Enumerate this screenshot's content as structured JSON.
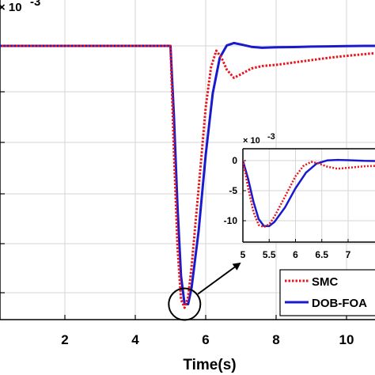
{
  "chart_data": [
    {
      "type": "line",
      "role": "main",
      "xlabel": "Time(s)",
      "ylabel": "",
      "multiplier_label": "× 10",
      "multiplier_exponent": "-3",
      "xlim": [
        -0.2,
        11.2
      ],
      "ylim": [
        -12.5,
        1.1
      ],
      "x_ticks": [
        2,
        4,
        6,
        8,
        10
      ],
      "x_tick_labels": [
        "2",
        "4",
        "6",
        "8",
        "10"
      ],
      "grid": true,
      "legend_position": "bottom-right",
      "legend": [
        "SMC",
        "DOB-FOA"
      ],
      "series": [
        {
          "name": "SMC",
          "style": "dotted",
          "color": "#e8141c",
          "x": [
            0,
            5.0,
            5.1,
            5.2,
            5.3,
            5.4,
            5.5,
            5.6,
            5.8,
            6.0,
            6.15,
            6.3,
            6.45,
            6.6,
            6.8,
            7.0,
            7.3,
            7.6,
            8.0,
            8.5,
            9.0,
            9.5,
            10.0,
            10.5,
            11.2
          ],
          "y": [
            0,
            0,
            -4.5,
            -8.5,
            -10.7,
            -11.05,
            -10.6,
            -9.3,
            -6.0,
            -2.6,
            -0.9,
            -0.2,
            -0.5,
            -1.0,
            -1.35,
            -1.2,
            -0.95,
            -0.85,
            -0.8,
            -0.7,
            -0.6,
            -0.5,
            -0.42,
            -0.35,
            -0.25
          ]
        },
        {
          "name": "DOB-FOA",
          "style": "solid",
          "color": "#1a1acc",
          "x": [
            0,
            5.0,
            5.1,
            5.2,
            5.3,
            5.4,
            5.5,
            5.6,
            5.8,
            6.0,
            6.2,
            6.4,
            6.6,
            6.8,
            7.0,
            7.3,
            7.6,
            8.0,
            8.5,
            9.0,
            9.5,
            10.0,
            10.5,
            11.2
          ],
          "y": [
            0,
            0,
            -3.0,
            -6.8,
            -9.7,
            -10.9,
            -10.9,
            -10.2,
            -7.8,
            -4.6,
            -2.0,
            -0.5,
            0.02,
            0.12,
            0.06,
            -0.04,
            -0.08,
            -0.06,
            -0.05,
            -0.03,
            -0.02,
            -0.01,
            0.0,
            0.0
          ]
        }
      ]
    },
    {
      "type": "line",
      "role": "inset",
      "multiplier_label": "× 10",
      "multiplier_exponent": "-3",
      "xlim": [
        5,
        7.35
      ],
      "ylim": [
        -12.6,
        1.4
      ],
      "x_ticks": [
        5,
        5.5,
        6,
        6.5,
        7
      ],
      "x_tick_labels": [
        "5",
        "5.5",
        "6",
        "6.5",
        "7"
      ],
      "y_ticks": [
        0,
        -5,
        -10
      ],
      "y_tick_labels": [
        "0",
        "-5",
        "-10"
      ],
      "grid": true,
      "legend_position": "none"
    }
  ],
  "annotation": {
    "type": "zoom-callout",
    "circle_center": [
      5.4,
      -10.9
    ],
    "arrow_to": "inset"
  }
}
